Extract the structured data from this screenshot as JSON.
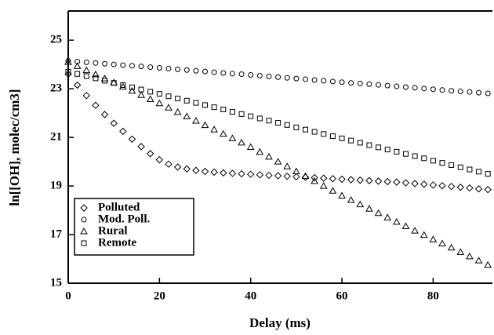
{
  "chart_data": {
    "type": "scatter",
    "x_label": "Delay (ms)",
    "y_label": "ln[[OH], molec/cm3]",
    "x": [
      0,
      2,
      4,
      6,
      8,
      10,
      12,
      14,
      16,
      18,
      20,
      22,
      24,
      26,
      28,
      30,
      32,
      34,
      36,
      38,
      40,
      42,
      44,
      46,
      48,
      50,
      52,
      54,
      56,
      58,
      60,
      62,
      64,
      66,
      68,
      70,
      72,
      74,
      76,
      78,
      80,
      82,
      84,
      86,
      88,
      90,
      92
    ],
    "series": [
      {
        "name": "Polluted",
        "marker": "diamond",
        "color": "#000000",
        "values": [
          23.6,
          23.15,
          22.72,
          22.32,
          21.94,
          21.58,
          21.25,
          20.93,
          20.62,
          20.33,
          20.08,
          19.9,
          19.78,
          19.7,
          19.64,
          19.6,
          19.57,
          19.54,
          19.52,
          19.5,
          19.48,
          19.46,
          19.44,
          19.42,
          19.4,
          19.38,
          19.36,
          19.34,
          19.32,
          19.3,
          19.28,
          19.26,
          19.24,
          19.22,
          19.2,
          19.18,
          19.16,
          19.13,
          19.1,
          19.07,
          19.04,
          19.01,
          18.98,
          18.95,
          18.92,
          18.88,
          18.85
        ]
      },
      {
        "name": "Mod. Poll.",
        "marker": "circle",
        "color": "#000000",
        "values": [
          24.15,
          24.12,
          24.09,
          24.06,
          24.03,
          24.0,
          23.97,
          23.95,
          23.92,
          23.89,
          23.86,
          23.83,
          23.8,
          23.77,
          23.74,
          23.71,
          23.68,
          23.65,
          23.62,
          23.6,
          23.57,
          23.54,
          23.51,
          23.48,
          23.45,
          23.42,
          23.39,
          23.36,
          23.33,
          23.3,
          23.27,
          23.24,
          23.22,
          23.19,
          23.16,
          23.13,
          23.1,
          23.07,
          23.04,
          23.01,
          22.98,
          22.95,
          22.92,
          22.89,
          22.87,
          22.84,
          22.81
        ]
      },
      {
        "name": "Rural",
        "marker": "triangle",
        "color": "#000000",
        "values": [
          24.1,
          23.93,
          23.76,
          23.59,
          23.42,
          23.25,
          23.08,
          22.91,
          22.74,
          22.57,
          22.4,
          22.22,
          22.04,
          21.86,
          21.68,
          21.5,
          21.32,
          21.14,
          20.96,
          20.78,
          20.6,
          20.4,
          20.2,
          20.0,
          19.8,
          19.6,
          19.4,
          19.2,
          19.0,
          18.8,
          18.6,
          18.42,
          18.24,
          18.06,
          17.88,
          17.7,
          17.52,
          17.34,
          17.16,
          16.98,
          16.8,
          16.63,
          16.46,
          16.28,
          16.1,
          15.93,
          15.75
        ]
      },
      {
        "name": "Remote",
        "marker": "square",
        "color": "#000000",
        "values": [
          23.7,
          23.61,
          23.52,
          23.43,
          23.33,
          23.24,
          23.15,
          23.06,
          22.97,
          22.88,
          22.79,
          22.69,
          22.6,
          22.51,
          22.42,
          22.33,
          22.24,
          22.15,
          22.05,
          21.96,
          21.87,
          21.78,
          21.69,
          21.6,
          21.51,
          21.41,
          21.32,
          21.23,
          21.14,
          21.05,
          20.96,
          20.87,
          20.78,
          20.68,
          20.59,
          20.5,
          20.41,
          20.32,
          20.23,
          20.14,
          20.04,
          19.95,
          19.86,
          19.77,
          19.68,
          19.59,
          19.5
        ]
      }
    ],
    "xlim": [
      0,
      93
    ],
    "xticks": [
      0,
      20,
      40,
      60,
      80
    ],
    "ylim": [
      15,
      26.2
    ],
    "yticks": [
      15,
      17,
      19,
      21,
      23,
      25
    ],
    "legend": "lower left"
  }
}
